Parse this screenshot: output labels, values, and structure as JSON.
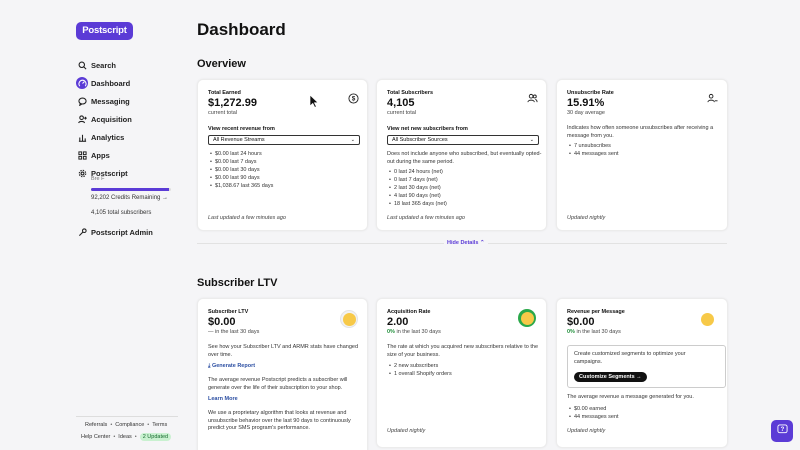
{
  "sidebar": {
    "logo": "Postscript",
    "items": [
      {
        "label": "Search",
        "icon": "search-icon"
      },
      {
        "label": "Dashboard",
        "icon": "dashboard-icon"
      },
      {
        "label": "Messaging",
        "icon": "message-icon"
      },
      {
        "label": "Acquisition",
        "icon": "acquisition-icon"
      },
      {
        "label": "Analytics",
        "icon": "analytics-icon"
      },
      {
        "label": "Apps",
        "icon": "apps-icon"
      },
      {
        "label": "Postscript",
        "icon": "gear-icon"
      },
      {
        "label": "Postscript Admin",
        "icon": "wrench-icon"
      }
    ],
    "account_sub": "Bre F",
    "credits_progress": 0.98,
    "credits_text": "92,202 Credits Remaining →",
    "subscribers_text": "4,105 total subscribers",
    "footer": {
      "referrals": "Referrals",
      "compliance": "Compliance",
      "terms": "Terms",
      "help_center": "Help Center",
      "ideas": "Ideas",
      "updated": "2 Updated"
    }
  },
  "main": {
    "title": "Dashboard",
    "overview_title": "Overview",
    "ltv_title": "Subscriber LTV",
    "hide_details": "Hide Details ⌃"
  },
  "cards": {
    "earned": {
      "label": "Total Earned",
      "value": "$1,272.99",
      "sub": "current total",
      "filter_label": "View recent revenue from",
      "select": "All Revenue Streams",
      "items": [
        "$0.00 last 24 hours",
        "$0.00 last 7 days",
        "$0.00 last 30 days",
        "$0.00 last 90 days",
        "$1,038.67 last 365 days"
      ],
      "updated": "Last updated a few minutes ago"
    },
    "subscribers": {
      "label": "Total Subscribers",
      "value": "4,105",
      "sub": "current total",
      "filter_label": "View net new subscribers from",
      "select": "All Subscriber Sources",
      "desc": "Does not include anyone who subscribed, but eventually opted-out during the same period.",
      "items": [
        "0 last 24 hours (net)",
        "0 last 7 days (net)",
        "2 last 30 days (net)",
        "4 last 90 days (net)",
        "18 last 365 days (net)"
      ],
      "updated": "Last updated a few minutes ago"
    },
    "unsub": {
      "label": "Unsubscribe Rate",
      "value": "15.91%",
      "sub": "30 day average",
      "desc": "Indicates how often someone unsubscribes after receiving a message from you.",
      "items": [
        "7 unsubscribes",
        "44 messages sent"
      ],
      "updated": "Updated nightly"
    },
    "ltv": {
      "label": "Subscriber LTV",
      "value": "$0.00",
      "sub": "— in the last 30 days",
      "desc": "See how your Subscriber LTV and ARMR stats have changed over time.",
      "report": "⤓ Generate Report",
      "desc2": "The average revenue Postscript predicts a subscriber will generate over the life of their subscription to your shop.",
      "learn_more": "Learn More",
      "desc3": "We use a proprietary algorithm that looks at revenue and unsubscribe behavior over the last 90 days to continuously predict your SMS program's performance."
    },
    "acq": {
      "label": "Acquisition Rate",
      "value": "2.00",
      "pct": "0%",
      "sub": " in the last 30 days",
      "desc": "The rate at which you acquired new subscribers relative to the size of your business.",
      "items": [
        "2 new subscribers",
        "1 overall Shopify orders"
      ],
      "updated": "Updated nightly"
    },
    "rpm": {
      "label": "Revenue per Message",
      "value": "$0.00",
      "pct": "0%",
      "sub": " in the last 30 days",
      "seg_text": "Create customized segments to optimize your campaigns.",
      "seg_btn": "Customize Segments →",
      "desc": "The average revenue a message generated for you.",
      "items": [
        "$0.00 earned",
        "44 messages sent"
      ],
      "updated": "Updated nightly"
    }
  },
  "colors": {
    "brand": "#5b3bd6",
    "positive": "#1f8f3a"
  }
}
